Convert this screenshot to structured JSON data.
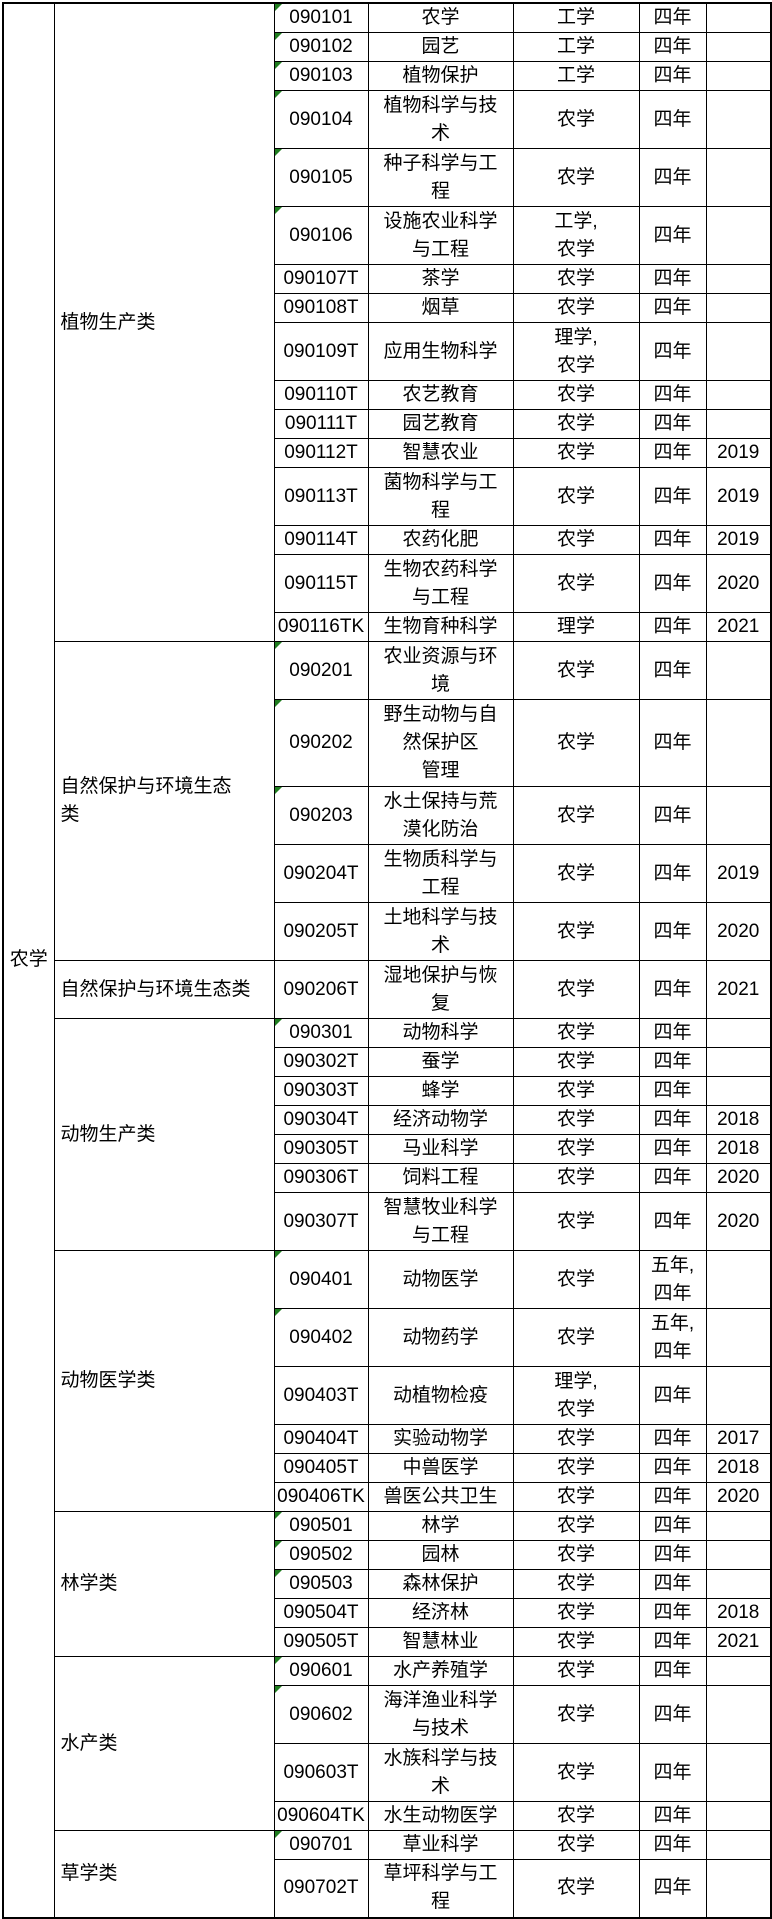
{
  "discipline": "农学",
  "colors": {
    "border": "#000000",
    "text": "#000000",
    "background": "#ffffff",
    "text_format_indicator_green": "#1f7d1f"
  },
  "icons": {
    "text_format_indicator": "green-triangle"
  },
  "table": {
    "groups": [
      {
        "category": "植物生产类",
        "rows": [
          {
            "code": "090101",
            "major": "农学",
            "degree": "工学",
            "duration": "四年",
            "year": ""
          },
          {
            "code": "090102",
            "major": "园艺",
            "degree": "工学",
            "duration": "四年",
            "year": ""
          },
          {
            "code": "090103",
            "major": "植物保护",
            "degree": "工学",
            "duration": "四年",
            "year": ""
          },
          {
            "code": "090104",
            "major": "植物科学与技\n术",
            "degree": "农学",
            "duration": "四年",
            "year": ""
          },
          {
            "code": "090105",
            "major": "种子科学与工\n程",
            "degree": "农学",
            "duration": "四年",
            "year": ""
          },
          {
            "code": "090106",
            "major": "设施农业科学\n与工程",
            "degree": "工学,\n农学",
            "duration": "四年",
            "year": ""
          },
          {
            "code": "090107T",
            "major": "茶学",
            "degree": "农学",
            "duration": "四年",
            "year": ""
          },
          {
            "code": "090108T",
            "major": "烟草",
            "degree": "农学",
            "duration": "四年",
            "year": ""
          },
          {
            "code": "090109T",
            "major": "应用生物科学",
            "degree": "理学,\n农学",
            "duration": "四年",
            "year": ""
          },
          {
            "code": "090110T",
            "major": "农艺教育",
            "degree": "农学",
            "duration": "四年",
            "year": ""
          },
          {
            "code": "090111T",
            "major": "园艺教育",
            "degree": "农学",
            "duration": "四年",
            "year": ""
          },
          {
            "code": "090112T",
            "major": "智慧农业",
            "degree": "农学",
            "duration": "四年",
            "year": "2019"
          },
          {
            "code": "090113T",
            "major": "菌物科学与工\n程",
            "degree": "农学",
            "duration": "四年",
            "year": "2019"
          },
          {
            "code": "090114T",
            "major": "农药化肥",
            "degree": "农学",
            "duration": "四年",
            "year": "2019"
          },
          {
            "code": "090115T",
            "major": "生物农药科学\n与工程",
            "degree": "农学",
            "duration": "四年",
            "year": "2020"
          },
          {
            "code": "090116TK",
            "major": "生物育种科学",
            "degree": "理学",
            "duration": "四年",
            "year": "2021"
          }
        ]
      },
      {
        "category": "自然保护与环境生态\n类",
        "rows": [
          {
            "code": "090201",
            "major": "农业资源与环\n境",
            "degree": "农学",
            "duration": "四年",
            "year": ""
          },
          {
            "code": "090202",
            "major": "野生动物与自\n然保护区\n管理",
            "degree": "农学",
            "duration": "四年",
            "year": ""
          },
          {
            "code": "090203",
            "major": "水土保持与荒\n漠化防治",
            "degree": "农学",
            "duration": "四年",
            "year": ""
          },
          {
            "code": "090204T",
            "major": "生物质科学与\n工程",
            "degree": "农学",
            "duration": "四年",
            "year": "2019"
          },
          {
            "code": "090205T",
            "major": "土地科学与技\n术",
            "degree": "农学",
            "duration": "四年",
            "year": "2020"
          }
        ]
      },
      {
        "category": "自然保护与环境生态类",
        "rows": [
          {
            "code": "090206T",
            "major": "湿地保护与恢\n复",
            "degree": "农学",
            "duration": "四年",
            "year": "2021"
          }
        ]
      },
      {
        "category": "动物生产类",
        "rows": [
          {
            "code": "090301",
            "major": "动物科学",
            "degree": "农学",
            "duration": "四年",
            "year": ""
          },
          {
            "code": "090302T",
            "major": "蚕学",
            "degree": "农学",
            "duration": "四年",
            "year": ""
          },
          {
            "code": "090303T",
            "major": "蜂学",
            "degree": "农学",
            "duration": "四年",
            "year": ""
          },
          {
            "code": "090304T",
            "major": "经济动物学",
            "degree": "农学",
            "duration": "四年",
            "year": "2018"
          },
          {
            "code": "090305T",
            "major": "马业科学",
            "degree": "农学",
            "duration": "四年",
            "year": "2018"
          },
          {
            "code": "090306T",
            "major": "饲料工程",
            "degree": "农学",
            "duration": "四年",
            "year": "2020"
          },
          {
            "code": "090307T",
            "major": "智慧牧业科学\n与工程",
            "degree": "农学",
            "duration": "四年",
            "year": "2020"
          }
        ]
      },
      {
        "category": "动物医学类",
        "rows": [
          {
            "code": "090401",
            "major": "动物医学",
            "degree": "农学",
            "duration": "五年,\n四年",
            "year": ""
          },
          {
            "code": "090402",
            "major": "动物药学",
            "degree": "农学",
            "duration": "五年,\n四年",
            "year": ""
          },
          {
            "code": "090403T",
            "major": "动植物检疫",
            "degree": "理学,\n农学",
            "duration": "四年",
            "year": ""
          },
          {
            "code": "090404T",
            "major": "实验动物学",
            "degree": "农学",
            "duration": "四年",
            "year": "2017"
          },
          {
            "code": "090405T",
            "major": "中兽医学",
            "degree": "农学",
            "duration": "四年",
            "year": "2018"
          },
          {
            "code": "090406TK",
            "major": "兽医公共卫生",
            "degree": "农学",
            "duration": "四年",
            "year": "2020"
          }
        ]
      },
      {
        "category": "林学类",
        "rows": [
          {
            "code": "090501",
            "major": "林学",
            "degree": "农学",
            "duration": "四年",
            "year": ""
          },
          {
            "code": "090502",
            "major": "园林",
            "degree": "农学",
            "duration": "四年",
            "year": ""
          },
          {
            "code": "090503",
            "major": "森林保护",
            "degree": "农学",
            "duration": "四年",
            "year": ""
          },
          {
            "code": "090504T",
            "major": "经济林",
            "degree": "农学",
            "duration": "四年",
            "year": "2018"
          },
          {
            "code": "090505T",
            "major": "智慧林业",
            "degree": "农学",
            "duration": "四年",
            "year": "2021"
          }
        ]
      },
      {
        "category": "水产类",
        "rows": [
          {
            "code": "090601",
            "major": "水产养殖学",
            "degree": "农学",
            "duration": "四年",
            "year": ""
          },
          {
            "code": "090602",
            "major": "海洋渔业科学\n与技术",
            "degree": "农学",
            "duration": "四年",
            "year": ""
          },
          {
            "code": "090603T",
            "major": "水族科学与技\n术",
            "degree": "农学",
            "duration": "四年",
            "year": ""
          },
          {
            "code": "090604TK",
            "major": "水生动物医学",
            "degree": "农学",
            "duration": "四年",
            "year": ""
          }
        ]
      },
      {
        "category": "草学类",
        "rows": [
          {
            "code": "090701",
            "major": "草业科学",
            "degree": "农学",
            "duration": "四年",
            "year": ""
          },
          {
            "code": "090702T",
            "major": "草坪科学与工\n程",
            "degree": "农学",
            "duration": "四年",
            "year": ""
          }
        ]
      }
    ]
  }
}
